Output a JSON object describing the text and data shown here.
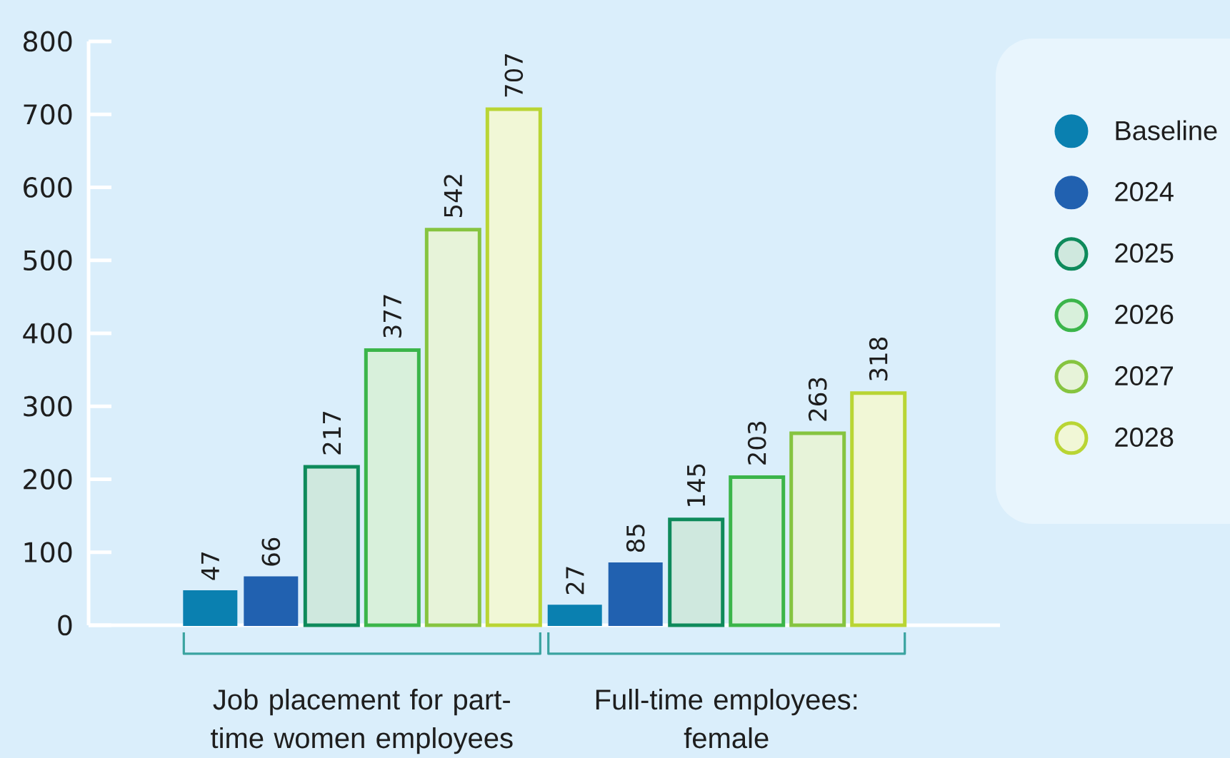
{
  "chart_data": {
    "type": "bar",
    "categories": [
      "Job placement for part-time women employees",
      "Full-time employees: female"
    ],
    "series": [
      {
        "name": "Baseline",
        "color": "#0a80b0",
        "values": [
          47,
          27
        ]
      },
      {
        "name": "2024",
        "color": "#2161b0",
        "values": [
          66,
          85
        ]
      },
      {
        "name": "2025",
        "color": "#0e8a5b",
        "values": [
          217,
          145
        ]
      },
      {
        "name": "2026",
        "color": "#3bb54a",
        "values": [
          377,
          203
        ]
      },
      {
        "name": "2027",
        "color": "#86c440",
        "values": [
          542,
          263
        ]
      },
      {
        "name": "2028",
        "color": "#b9d534",
        "values": [
          707,
          318
        ]
      }
    ],
    "ylim": [
      0,
      800
    ],
    "yticks": [
      0,
      100,
      200,
      300,
      400,
      500,
      600,
      700,
      800
    ],
    "legend": "right",
    "data_labels": true
  }
}
